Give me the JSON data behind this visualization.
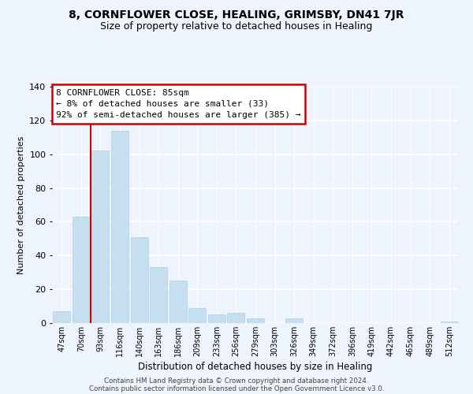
{
  "title": "8, CORNFLOWER CLOSE, HEALING, GRIMSBY, DN41 7JR",
  "subtitle": "Size of property relative to detached houses in Healing",
  "xlabel": "Distribution of detached houses by size in Healing",
  "ylabel": "Number of detached properties",
  "bar_color": "#c5dff0",
  "bar_edge_color": "#b0cfe0",
  "categories": [
    "47sqm",
    "70sqm",
    "93sqm",
    "116sqm",
    "140sqm",
    "163sqm",
    "186sqm",
    "209sqm",
    "233sqm",
    "256sqm",
    "279sqm",
    "303sqm",
    "326sqm",
    "349sqm",
    "372sqm",
    "396sqm",
    "419sqm",
    "442sqm",
    "465sqm",
    "489sqm",
    "512sqm"
  ],
  "values": [
    7,
    63,
    102,
    114,
    51,
    33,
    25,
    9,
    5,
    6,
    3,
    0,
    3,
    0,
    0,
    0,
    0,
    0,
    0,
    0,
    1
  ],
  "ylim": [
    0,
    140
  ],
  "yticks": [
    0,
    20,
    40,
    60,
    80,
    100,
    120,
    140
  ],
  "vline_index": 1.5,
  "annotation_title": "8 CORNFLOWER CLOSE: 85sqm",
  "annotation_line1": "← 8% of detached houses are smaller (33)",
  "annotation_line2": "92% of semi-detached houses are larger (385) →",
  "annotation_box_color": "#ffffff",
  "annotation_border_color": "#cc0000",
  "vline_color": "#cc0000",
  "footer1": "Contains HM Land Registry data © Crown copyright and database right 2024.",
  "footer2": "Contains public sector information licensed under the Open Government Licence v3.0.",
  "background_color": "#edf4fb",
  "title_fontsize": 10,
  "subtitle_fontsize": 9
}
